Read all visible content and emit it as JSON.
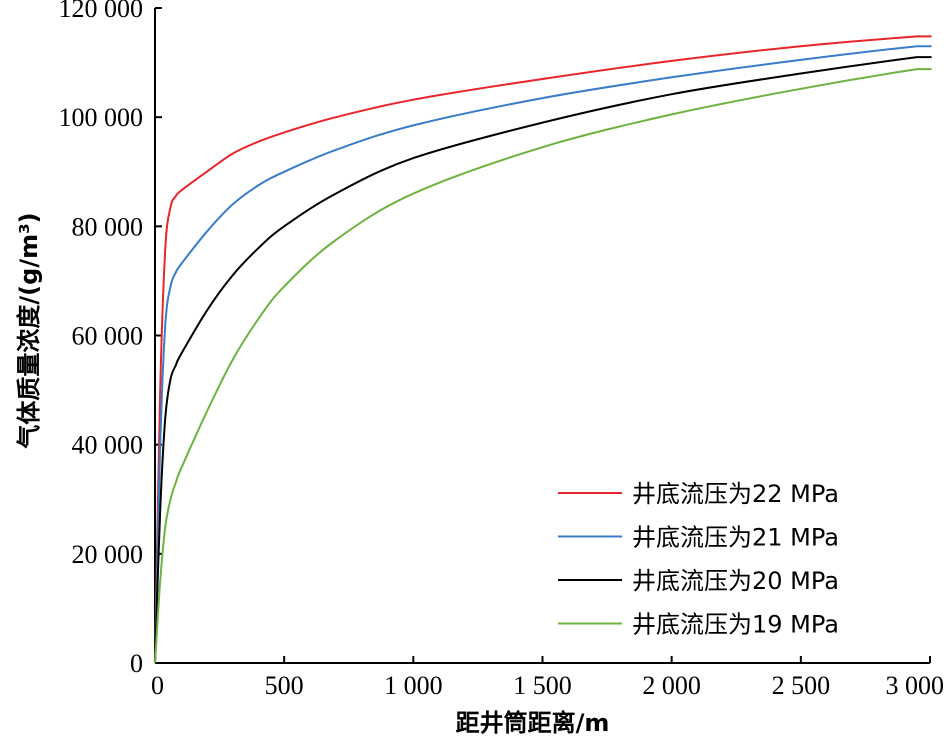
{
  "chart_data": {
    "type": "line",
    "title": "",
    "xlabel": "距井筒距离/m",
    "ylabel": "气体质量浓度/(g/m³)",
    "xlim": [
      0,
      3000
    ],
    "ylim": [
      0,
      120000
    ],
    "xticks": [
      0,
      500,
      1000,
      1500,
      2000,
      2500,
      3000
    ],
    "xtick_labels": [
      "0",
      "500",
      "1 000",
      "1 500",
      "2 000",
      "2 500",
      "3 000"
    ],
    "yticks": [
      0,
      20000,
      40000,
      60000,
      80000,
      100000,
      120000
    ],
    "ytick_labels": [
      "0",
      "20 000",
      "40 000",
      "60 000",
      "80 000",
      "100 000",
      "120 000"
    ],
    "grid": false,
    "legend_position": "bottom-right",
    "series": [
      {
        "name": "井底流压为22 MPa",
        "color": "#e8252a",
        "x": [
          0,
          20,
          40,
          60,
          80,
          100,
          200,
          300,
          400,
          500,
          700,
          1000,
          1500,
          2000,
          2500,
          2950,
          3000
        ],
        "y": [
          0,
          50000,
          76000,
          83500,
          85500,
          86500,
          90000,
          93300,
          95500,
          97200,
          100000,
          103200,
          107000,
          110300,
          113000,
          114800,
          114800
        ]
      },
      {
        "name": "井底流压为21 MPa",
        "color": "#3a7cc7",
        "x": [
          0,
          20,
          40,
          60,
          80,
          100,
          200,
          300,
          400,
          500,
          700,
          1000,
          1500,
          2000,
          2500,
          2950,
          3000
        ],
        "y": [
          0,
          40000,
          62000,
          69000,
          71500,
          73000,
          79000,
          84000,
          87500,
          90000,
          94000,
          98500,
          103500,
          107300,
          110500,
          113000,
          113000
        ]
      },
      {
        "name": "井底流压为20 MPa",
        "color": "#000000",
        "x": [
          0,
          20,
          40,
          60,
          80,
          100,
          200,
          300,
          400,
          500,
          700,
          1000,
          1500,
          2000,
          2500,
          2950,
          3000
        ],
        "y": [
          0,
          28000,
          45000,
          52000,
          54500,
          56500,
          64500,
          71000,
          76000,
          80000,
          86000,
          92500,
          99000,
          104200,
          108000,
          111000,
          111000
        ]
      },
      {
        "name": "井底流压为19 MPa",
        "color": "#6db33f",
        "x": [
          0,
          20,
          40,
          60,
          80,
          100,
          200,
          300,
          400,
          500,
          700,
          1000,
          1500,
          2000,
          2500,
          2950,
          3000
        ],
        "y": [
          0,
          15000,
          25000,
          30000,
          33000,
          35500,
          46000,
          55500,
          63000,
          69000,
          77500,
          86000,
          94500,
          100500,
          105200,
          108800,
          108800
        ]
      }
    ]
  }
}
